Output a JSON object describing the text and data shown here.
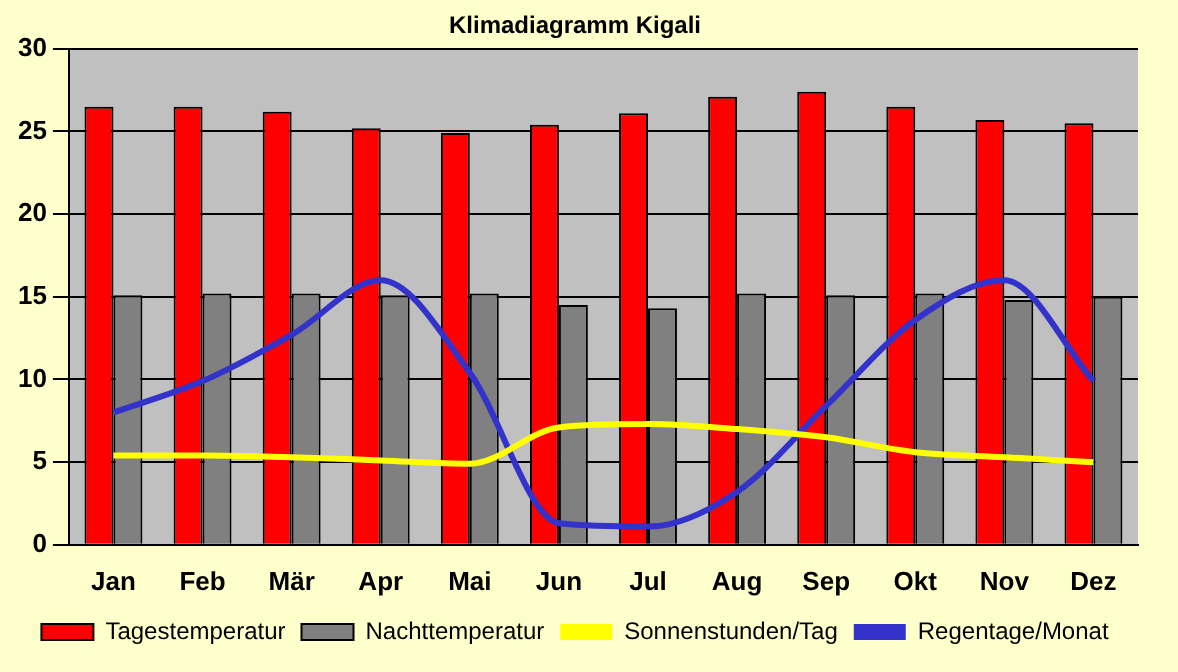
{
  "chart_data": {
    "type": "bar",
    "title": "Klimadiagramm Kigali",
    "categories": [
      "Jan",
      "Feb",
      "Mär",
      "Apr",
      "Mai",
      "Jun",
      "Jul",
      "Aug",
      "Sep",
      "Okt",
      "Nov",
      "Dez"
    ],
    "series": [
      {
        "name": "Tagestemperatur",
        "color": "#ff0000",
        "values": [
          26.5,
          26.5,
          26.2,
          25.2,
          24.9,
          25.4,
          26.1,
          27.1,
          27.4,
          26.5,
          25.7,
          25.5
        ]
      },
      {
        "name": "Nachttemperatur",
        "color": "#808080",
        "values": [
          15.1,
          15.2,
          15.2,
          15.1,
          15.2,
          14.5,
          14.3,
          15.2,
          15.1,
          15.2,
          14.8,
          15.0
        ]
      },
      {
        "name": "Sonnenstunden/Tag",
        "type": "line",
        "color": "#ffff00",
        "values": [
          5.4,
          5.4,
          5.3,
          5.1,
          4.9,
          7.1,
          7.3,
          7.0,
          6.5,
          5.6,
          5.3,
          5.0
        ]
      },
      {
        "name": "Regentage/Monat",
        "type": "line",
        "color": "#3333cc",
        "values": [
          8.0,
          9.9,
          12.7,
          16.0,
          10.4,
          1.3,
          1.1,
          3.2,
          8.4,
          13.6,
          16.0,
          9.9
        ]
      }
    ],
    "ylim": [
      0,
      30
    ],
    "yticks": [
      0,
      5,
      10,
      15,
      20,
      25,
      30
    ],
    "grid": "y",
    "legend": "bottom",
    "marker": "none",
    "line_style": "solid"
  }
}
